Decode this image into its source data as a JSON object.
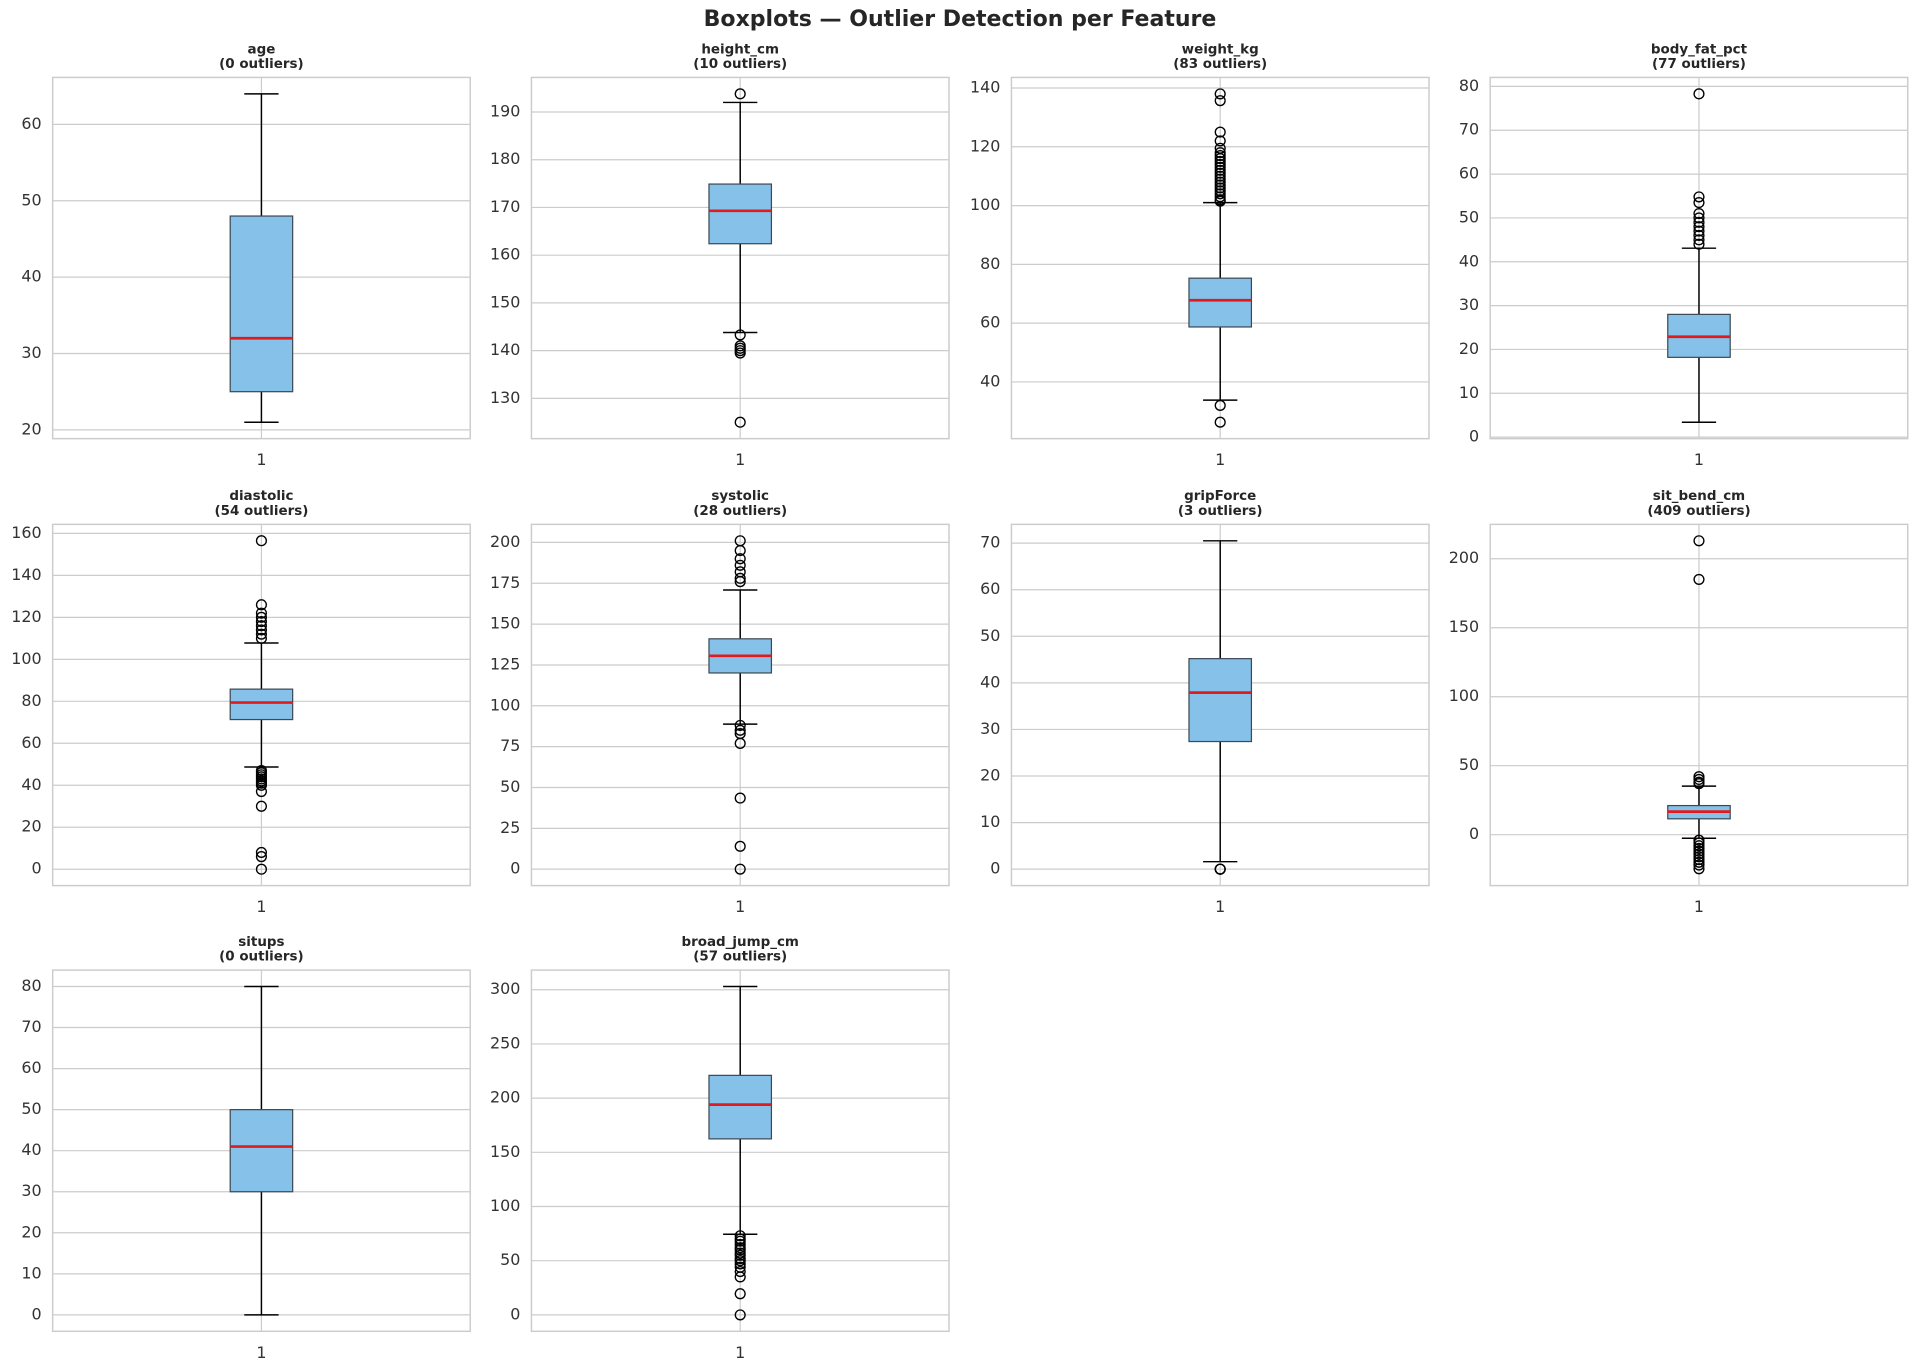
{
  "title": "Boxplots — Outlier Detection per Feature",
  "chart_data": [
    {
      "type": "box",
      "title": "age",
      "subtitle": "(0 outliers)",
      "categories": [
        "1"
      ],
      "whisker_low": 21,
      "q1": 25,
      "median": 32,
      "q3": 48,
      "whisker_high": 64,
      "outliers": [],
      "ylim": [
        18.85,
        66.15
      ],
      "yticks": [
        20,
        30,
        40,
        50,
        60
      ],
      "grid": true,
      "color": "#85c1e9",
      "median_color": "#e31a1c"
    },
    {
      "type": "box",
      "title": "height_cm",
      "subtitle": "(10 outliers)",
      "categories": [
        "1"
      ],
      "whisker_low": 143.8,
      "q1": 162.4,
      "median": 169.3,
      "q3": 174.9,
      "whisker_high": 192,
      "outliers": [
        193.8,
        143.3,
        141,
        140.5,
        140,
        139.5,
        125
      ],
      "ylim": [
        121.56,
        197.24
      ],
      "yticks": [
        130,
        140,
        150,
        160,
        170,
        180,
        190
      ],
      "grid": true,
      "color": "#85c1e9",
      "median_color": "#e31a1c"
    },
    {
      "type": "box",
      "title": "weight_kg",
      "subtitle": "(83 outliers)",
      "categories": [
        "1"
      ],
      "whisker_low": 33.8,
      "q1": 58.7,
      "median": 67.8,
      "q3": 75.3,
      "whisker_high": 101,
      "outliers": [
        138,
        135.7,
        125,
        122,
        119.5,
        118,
        117,
        116,
        115,
        114,
        113,
        112,
        111,
        110,
        109,
        108,
        107,
        106,
        105,
        104,
        103,
        102,
        101.5,
        32,
        26.3
      ],
      "ylim": [
        20.7,
        143.6
      ],
      "yticks": [
        40,
        60,
        80,
        100,
        120,
        140
      ],
      "grid": true,
      "color": "#85c1e9",
      "median_color": "#e31a1c"
    },
    {
      "type": "box",
      "title": "body_fat_pct",
      "subtitle": "(77 outliers)",
      "categories": [
        "1"
      ],
      "whisker_low": 3.4,
      "q1": 18.2,
      "median": 22.9,
      "q3": 28,
      "whisker_high": 43.1,
      "outliers": [
        78.3,
        54.8,
        53.5,
        51,
        50,
        49,
        48,
        47,
        46,
        45,
        44
      ],
      "ylim": [
        -0.35,
        82.05
      ],
      "yticks": [
        0,
        10,
        20,
        30,
        40,
        50,
        60,
        70,
        80
      ],
      "grid": true,
      "color": "#85c1e9",
      "median_color": "#e31a1c"
    },
    {
      "type": "box",
      "title": "diastolic",
      "subtitle": "(54 outliers)",
      "categories": [
        "1"
      ],
      "whisker_low": 48.7,
      "q1": 71.3,
      "median": 79.4,
      "q3": 85.8,
      "whisker_high": 107.8,
      "outliers": [
        156.5,
        126,
        122,
        120,
        118,
        116,
        114,
        112,
        110,
        47,
        46,
        45,
        44,
        43,
        42,
        41,
        40,
        37,
        30,
        8,
        6,
        0
      ],
      "ylim": [
        -7.8,
        164.3
      ],
      "yticks": [
        0,
        20,
        40,
        60,
        80,
        100,
        120,
        140,
        160
      ],
      "grid": true,
      "color": "#85c1e9",
      "median_color": "#e31a1c"
    },
    {
      "type": "box",
      "title": "systolic",
      "subtitle": "(28 outliers)",
      "categories": [
        "1"
      ],
      "whisker_low": 88.8,
      "q1": 120.1,
      "median": 130.6,
      "q3": 141,
      "whisker_high": 170.9,
      "outliers": [
        201,
        195,
        190,
        186,
        182,
        178,
        176,
        88,
        85,
        83,
        77,
        43.5,
        14,
        0
      ],
      "ylim": [
        -10.05,
        211.05
      ],
      "yticks": [
        0,
        25,
        50,
        75,
        100,
        125,
        150,
        175,
        200
      ],
      "grid": true,
      "color": "#85c1e9",
      "median_color": "#e31a1c"
    },
    {
      "type": "box",
      "title": "gripForce",
      "subtitle": "(3 outliers)",
      "categories": [
        "1"
      ],
      "whisker_low": 1.6,
      "q1": 27.4,
      "median": 37.9,
      "q3": 45.2,
      "whisker_high": 70.5,
      "outliers": [
        0,
        0,
        0
      ],
      "ylim": [
        -3.53,
        74.03
      ],
      "yticks": [
        0,
        10,
        20,
        30,
        40,
        50,
        60,
        70
      ],
      "grid": true,
      "color": "#85c1e9",
      "median_color": "#e31a1c"
    },
    {
      "type": "box",
      "title": "sit_bend_cm",
      "subtitle": "(409 outliers)",
      "categories": [
        "1"
      ],
      "whisker_low": -2.6,
      "q1": 11.5,
      "median": 16.7,
      "q3": 21.1,
      "whisker_high": 35.2,
      "outliers": [
        213,
        185,
        42,
        40,
        38,
        37,
        -4,
        -6,
        -8,
        -10,
        -12,
        -14,
        -16,
        -18,
        -20,
        -22,
        -24.7
      ],
      "ylim": [
        -36.9,
        224.9
      ],
      "yticks": [
        0,
        50,
        100,
        150,
        200
      ],
      "grid": true,
      "color": "#85c1e9",
      "median_color": "#e31a1c"
    },
    {
      "type": "box",
      "title": "situps",
      "subtitle": "(0 outliers)",
      "categories": [
        "1"
      ],
      "whisker_low": 0,
      "q1": 30,
      "median": 41,
      "q3": 50,
      "whisker_high": 80,
      "outliers": [],
      "ylim": [
        -4,
        84
      ],
      "yticks": [
        0,
        10,
        20,
        30,
        40,
        50,
        60,
        70,
        80
      ],
      "grid": true,
      "color": "#85c1e9",
      "median_color": "#e31a1c"
    },
    {
      "type": "box",
      "title": "broad_jump_cm",
      "subtitle": "(57 outliers)",
      "categories": [
        "1"
      ],
      "whisker_low": 74.4,
      "q1": 162.4,
      "median": 194,
      "q3": 221,
      "whisker_high": 303,
      "outliers": [
        73,
        70,
        68,
        65,
        62,
        60,
        57,
        55,
        52,
        50,
        47,
        44,
        40,
        35,
        19.5,
        0
      ],
      "ylim": [
        -15.15,
        318.15
      ],
      "yticks": [
        0,
        50,
        100,
        150,
        200,
        250,
        300
      ],
      "grid": true,
      "color": "#85c1e9",
      "median_color": "#e31a1c"
    }
  ]
}
